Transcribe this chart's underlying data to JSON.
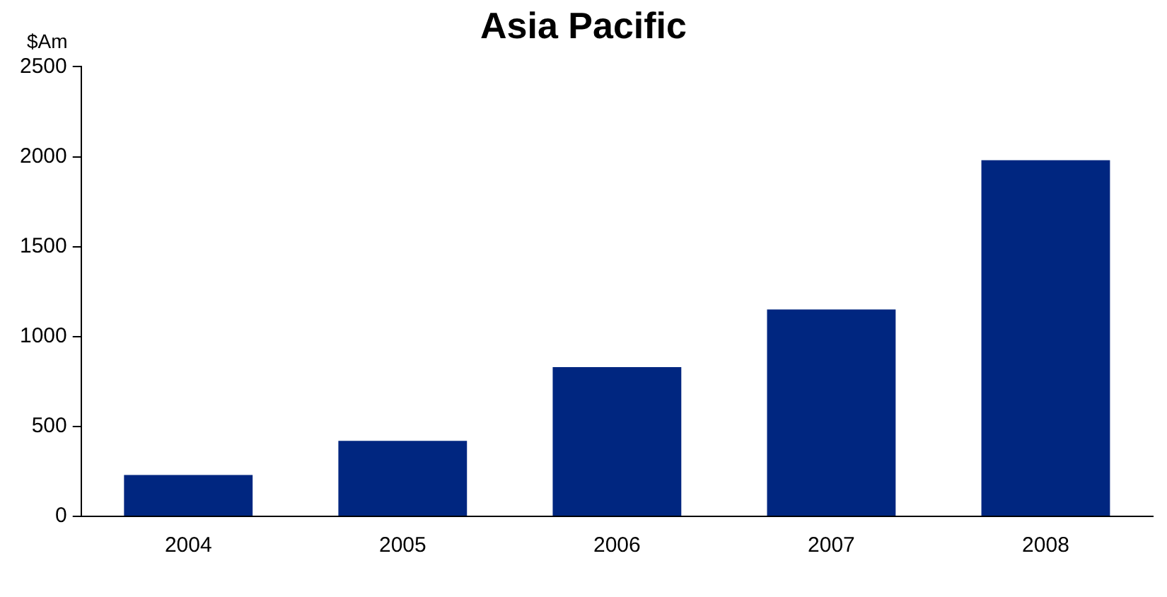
{
  "chart_data": {
    "type": "bar",
    "title": "Asia Pacific",
    "ylabel": "$Am",
    "categories": [
      "2004",
      "2005",
      "2006",
      "2007",
      "2008"
    ],
    "values": [
      230,
      420,
      830,
      1150,
      1980
    ],
    "color": "#002680",
    "ylim": [
      0,
      2500
    ],
    "yticks": [
      0,
      500,
      1000,
      1500,
      2000,
      2500
    ],
    "grid": false,
    "legend": false
  }
}
